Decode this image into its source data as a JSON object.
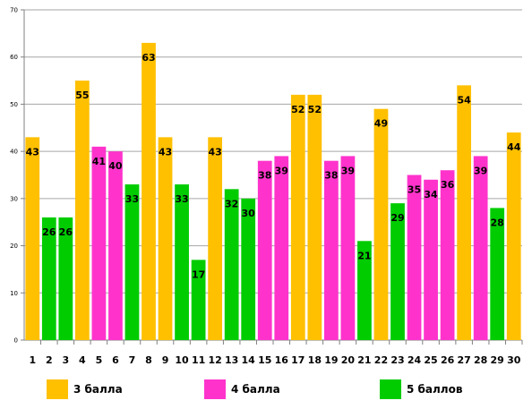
{
  "chart_data": {
    "type": "bar",
    "categories": [
      "1",
      "2",
      "3",
      "4",
      "5",
      "6",
      "7",
      "8",
      "9",
      "10",
      "11",
      "12",
      "13",
      "14",
      "15",
      "16",
      "17",
      "18",
      "19",
      "20",
      "21",
      "22",
      "23",
      "24",
      "25",
      "26",
      "27",
      "28",
      "29",
      "30"
    ],
    "values": [
      43,
      26,
      26,
      55,
      41,
      40,
      33,
      63,
      43,
      33,
      17,
      43,
      32,
      30,
      38,
      39,
      52,
      52,
      38,
      39,
      21,
      49,
      29,
      35,
      34,
      36,
      54,
      39,
      28,
      44
    ],
    "score_group": [
      3,
      5,
      5,
      3,
      4,
      4,
      5,
      3,
      3,
      5,
      5,
      3,
      5,
      5,
      4,
      4,
      3,
      3,
      4,
      4,
      5,
      3,
      5,
      4,
      4,
      4,
      3,
      4,
      5,
      3
    ],
    "ylim": [
      0,
      70
    ],
    "yticks": [
      0,
      10,
      20,
      30,
      40,
      50,
      60,
      70
    ],
    "grid": true,
    "legend_position": "bottom",
    "legend": [
      {
        "group": 3,
        "label": "3 балла",
        "color": "#FFC000"
      },
      {
        "group": 4,
        "label": "4 балла",
        "color": "#FF33CC"
      },
      {
        "group": 5,
        "label": "5 баллов",
        "color": "#00CC00"
      }
    ]
  }
}
